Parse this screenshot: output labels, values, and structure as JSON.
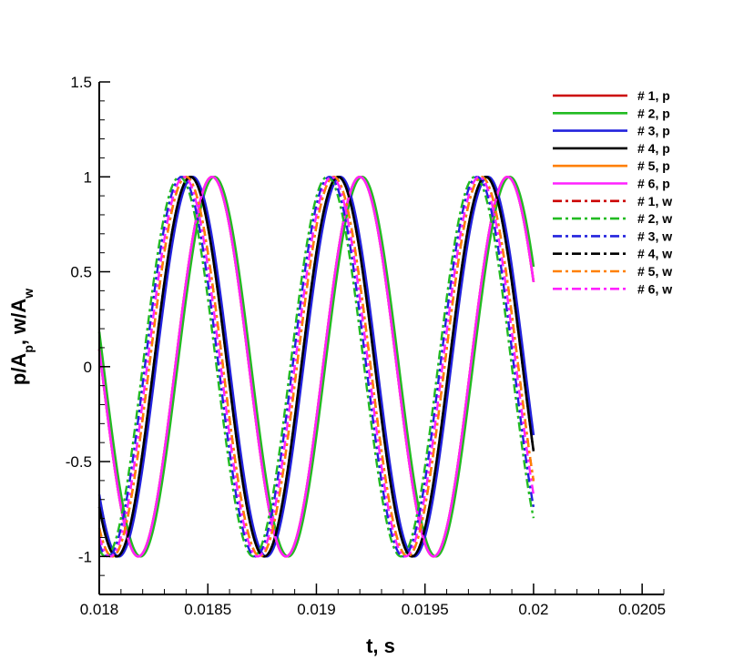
{
  "chart_data": {
    "type": "line",
    "xlabel": "t, s",
    "ylabel": {
      "p": "p/A",
      "p_sub": "p",
      "sep": ", w/A",
      "w_sub": "w"
    },
    "xlim": [
      0.018,
      0.0206
    ],
    "ylim": [
      -1.2,
      1.5
    ],
    "x_ticks": [
      0.018,
      0.0185,
      0.019,
      0.0195,
      0.02,
      0.0205
    ],
    "x_tick_labels": [
      "0.018",
      "0.0185",
      "0.019",
      "0.0195",
      "0.02",
      "0.0205"
    ],
    "y_ticks": [
      -1,
      -0.5,
      0,
      0.5,
      1,
      1.5
    ],
    "y_tick_labels": [
      "-1",
      "-0.5",
      "0",
      "0.5",
      "1",
      "1.5"
    ],
    "grid": false,
    "legend_position": "top-right",
    "period": 0.00068,
    "t_range": [
      0.018,
      0.02
    ],
    "series": [
      {
        "name": "# 1, p",
        "color": "#cc0000",
        "style": "solid",
        "peak_time": 0.01852
      },
      {
        "name": "# 2, p",
        "color": "#22bb22",
        "style": "solid",
        "peak_time": 0.01853
      },
      {
        "name": "# 3, p",
        "color": "#2222dd",
        "style": "solid",
        "peak_time": 0.01843
      },
      {
        "name": "# 4, p",
        "color": "#000000",
        "style": "solid",
        "peak_time": 0.01842
      },
      {
        "name": "# 5, p",
        "color": "#ff8000",
        "style": "solid",
        "peak_time": 0.01852
      },
      {
        "name": "# 6, p",
        "color": "#ff22ff",
        "style": "solid",
        "peak_time": 0.01852
      },
      {
        "name": "# 1, w",
        "color": "#cc0000",
        "style": "dashdot",
        "peak_time": 0.0184
      },
      {
        "name": "# 2, w",
        "color": "#22bb22",
        "style": "dashdot",
        "peak_time": 0.01837
      },
      {
        "name": "# 3, w",
        "color": "#2222dd",
        "style": "dashdot",
        "peak_time": 0.01838
      },
      {
        "name": "# 4, w",
        "color": "#000000",
        "style": "dashdot",
        "peak_time": 0.01842
      },
      {
        "name": "# 5, w",
        "color": "#ff8000",
        "style": "dashdot",
        "peak_time": 0.0184
      },
      {
        "name": "# 6, w",
        "color": "#ff22ff",
        "style": "dashdot",
        "peak_time": 0.01839
      }
    ]
  }
}
